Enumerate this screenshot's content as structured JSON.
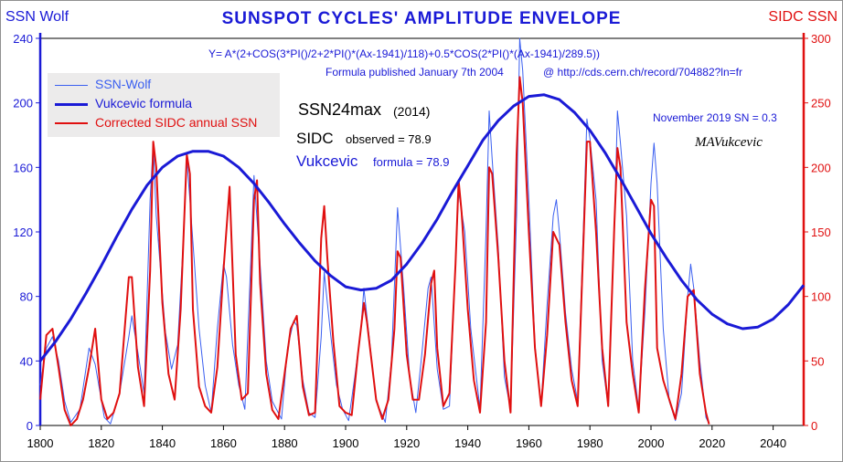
{
  "chart_data": {
    "type": "line",
    "title": "SUNSPOT CYCLES' AMPLITUDE ENVELOPE",
    "left_axis_title": "SSN Wolf",
    "right_axis_title": "SIDC  SSN",
    "x_ticks": [
      1800,
      1820,
      1840,
      1860,
      1880,
      1900,
      1920,
      1940,
      1960,
      1980,
      2000,
      2020,
      2040
    ],
    "x_range": [
      1800,
      2050
    ],
    "left_y_ticks": [
      0,
      40,
      80,
      120,
      160,
      200,
      240
    ],
    "left_y_range": [
      0,
      240
    ],
    "right_y_ticks": [
      0,
      50,
      100,
      150,
      200,
      250,
      300
    ],
    "right_y_range": [
      0,
      300
    ],
    "grid": false,
    "legend_position": "top-left",
    "formula_text": "Y= A*(2+COS(3*PI()/2+2*PI()*(Ax-1941)/118)+0.5*COS(2*PI()*(Ax-1941)/289.5))",
    "published_text": "Formula published January 7th 2004",
    "url_text": "@  http://cds.cern.ch/record/704882?ln=fr",
    "ssn24_label": "SSN24max",
    "ssn24_year": "(2014)",
    "sidc_label": "SIDC",
    "sidc_value": "observed = 78.9",
    "vukcevic_label": "Vukcevic",
    "vukcevic_value": "formula = 78.9",
    "november_note": "November 2019 SN = 0.3",
    "signature": "MAVukcevic",
    "series": [
      {
        "name": "SSN-Wolf",
        "color": "#3a5ff0",
        "axis": "left",
        "style": "thin",
        "x": [
          1800,
          1802,
          1804,
          1806,
          1808,
          1810,
          1813,
          1816,
          1818,
          1821,
          1823,
          1826,
          1829,
          1830,
          1832,
          1834,
          1836,
          1837,
          1838,
          1841,
          1843,
          1845,
          1847,
          1848,
          1849,
          1852,
          1854,
          1856,
          1858,
          1860,
          1861,
          1863,
          1865,
          1867,
          1869,
          1870,
          1872,
          1874,
          1876,
          1879,
          1881,
          1883,
          1884,
          1886,
          1888,
          1890,
          1892,
          1893,
          1895,
          1897,
          1899,
          1901,
          1903,
          1905,
          1906,
          1908,
          1910,
          1913,
          1915,
          1917,
          1919,
          1921,
          1923,
          1925,
          1927,
          1928,
          1930,
          1932,
          1934,
          1936,
          1937,
          1939,
          1941,
          1944,
          1946,
          1947,
          1948,
          1950,
          1952,
          1954,
          1956,
          1957,
          1958,
          1960,
          1962,
          1964,
          1966,
          1968,
          1969,
          1970,
          1972,
          1974,
          1976,
          1978,
          1979,
          1980,
          1982,
          1984,
          1986,
          1988,
          1989,
          1990,
          1992,
          1994,
          1996,
          1998,
          2000,
          2001,
          2002,
          2004,
          2006,
          2008,
          2010,
          2012,
          2013,
          2014,
          2016,
          2018,
          2019
        ],
        "y": [
          25,
          48,
          55,
          40,
          15,
          2,
          10,
          48,
          38,
          5,
          1,
          20,
          55,
          68,
          45,
          20,
          140,
          175,
          130,
          58,
          35,
          50,
          120,
          165,
          140,
          60,
          25,
          8,
          60,
          100,
          92,
          50,
          25,
          10,
          105,
          155,
          100,
          40,
          15,
          4,
          48,
          65,
          62,
          28,
          8,
          5,
          55,
          95,
          58,
          25,
          10,
          3,
          30,
          60,
          85,
          50,
          15,
          2,
          40,
          135,
          85,
          30,
          8,
          45,
          85,
          92,
          35,
          10,
          12,
          100,
          145,
          120,
          60,
          10,
          120,
          195,
          165,
          110,
          30,
          10,
          130,
          240,
          220,
          140,
          50,
          12,
          75,
          130,
          140,
          120,
          70,
          35,
          15,
          130,
          190,
          178,
          140,
          40,
          12,
          120,
          195,
          175,
          130,
          40,
          10,
          70,
          150,
          175,
          150,
          60,
          15,
          3,
          20,
          80,
          100,
          85,
          40,
          5,
          1
        ]
      },
      {
        "name": "Vukcevic formula",
        "color": "#1a1ad6",
        "axis": "left",
        "style": "thick",
        "x": [
          1800,
          1805,
          1810,
          1815,
          1820,
          1825,
          1830,
          1835,
          1840,
          1845,
          1850,
          1855,
          1860,
          1865,
          1870,
          1875,
          1880,
          1885,
          1890,
          1895,
          1900,
          1905,
          1910,
          1915,
          1920,
          1925,
          1930,
          1935,
          1940,
          1945,
          1950,
          1955,
          1960,
          1965,
          1970,
          1975,
          1980,
          1985,
          1990,
          1995,
          2000,
          2005,
          2010,
          2015,
          2020,
          2025,
          2030,
          2035,
          2040,
          2045,
          2050
        ],
        "y": [
          40,
          52,
          66,
          82,
          99,
          117,
          134,
          149,
          160,
          167,
          170,
          170,
          167,
          160,
          150,
          138,
          125,
          113,
          102,
          93,
          86,
          84,
          85,
          90,
          100,
          113,
          128,
          145,
          161,
          177,
          189,
          198,
          204,
          205,
          202,
          194,
          183,
          169,
          153,
          136,
          119,
          104,
          90,
          78,
          69,
          63,
          60,
          61,
          66,
          75,
          87
        ]
      },
      {
        "name": "Corrected SIDC annual SSN",
        "color": "#e01010",
        "axis": "right",
        "style": "medium",
        "x": [
          1800,
          1802,
          1804,
          1806,
          1808,
          1810,
          1812,
          1814,
          1816,
          1818,
          1820,
          1822,
          1824,
          1826,
          1828,
          1829,
          1830,
          1832,
          1834,
          1836,
          1837,
          1838,
          1840,
          1842,
          1844,
          1846,
          1848,
          1849,
          1850,
          1852,
          1854,
          1856,
          1858,
          1860,
          1862,
          1864,
          1866,
          1868,
          1870,
          1871,
          1872,
          1874,
          1876,
          1878,
          1880,
          1882,
          1884,
          1886,
          1888,
          1890,
          1892,
          1893,
          1894,
          1896,
          1898,
          1900,
          1902,
          1904,
          1906,
          1907,
          1908,
          1910,
          1912,
          1914,
          1916,
          1917,
          1918,
          1920,
          1922,
          1924,
          1926,
          1928,
          1929,
          1930,
          1932,
          1934,
          1936,
          1937,
          1938,
          1940,
          1942,
          1944,
          1946,
          1947,
          1948,
          1950,
          1952,
          1954,
          1956,
          1957,
          1958,
          1960,
          1962,
          1964,
          1966,
          1968,
          1970,
          1972,
          1974,
          1976,
          1978,
          1979,
          1980,
          1982,
          1984,
          1986,
          1988,
          1989,
          1990,
          1992,
          1994,
          1996,
          1998,
          2000,
          2001,
          2002,
          2004,
          2006,
          2008,
          2010,
          2012,
          2014,
          2016,
          2018,
          2019
        ],
        "y": [
          20,
          70,
          75,
          45,
          12,
          0,
          5,
          20,
          45,
          75,
          20,
          5,
          10,
          25,
          85,
          115,
          115,
          45,
          15,
          120,
          220,
          200,
          95,
          40,
          20,
          90,
          210,
          195,
          90,
          30,
          15,
          10,
          45,
          120,
          185,
          55,
          20,
          25,
          175,
          190,
          110,
          40,
          12,
          5,
          40,
          75,
          85,
          30,
          8,
          10,
          145,
          170,
          130,
          65,
          15,
          10,
          8,
          55,
          95,
          80,
          60,
          20,
          5,
          20,
          75,
          135,
          130,
          55,
          20,
          20,
          55,
          110,
          120,
          60,
          15,
          25,
          125,
          190,
          165,
          90,
          35,
          10,
          80,
          200,
          195,
          130,
          50,
          10,
          210,
          270,
          250,
          150,
          60,
          15,
          70,
          150,
          140,
          80,
          35,
          15,
          150,
          220,
          220,
          150,
          60,
          15,
          155,
          215,
          200,
          80,
          40,
          10,
          105,
          175,
          170,
          60,
          35,
          20,
          5,
          40,
          100,
          105,
          40,
          10,
          1
        ]
      }
    ]
  }
}
